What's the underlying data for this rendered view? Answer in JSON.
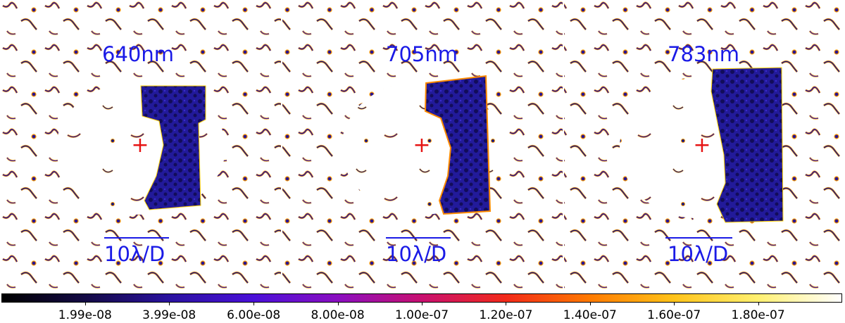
{
  "panels": [
    {
      "label": "640nm",
      "scale_label": "10λ/D"
    },
    {
      "label": "705nm",
      "scale_label": "10λ/D"
    },
    {
      "label": "783nm",
      "scale_label": "10λ/D"
    }
  ],
  "marker": "+",
  "colorbar": {
    "ticks": [
      "1.99e-08",
      "3.99e-08",
      "6.00e-08",
      "8.00e-08",
      "1.00e-07",
      "1.20e-07",
      "1.40e-07",
      "1.60e-07",
      "1.80e-07"
    ],
    "tick_values": [
      1.99e-08,
      3.99e-08,
      6e-08,
      8e-08,
      1e-07,
      1.2e-07,
      1.4e-07,
      1.6e-07,
      1.8e-07
    ],
    "range": [
      0,
      2e-07
    ],
    "colormap": [
      "#000000",
      "#140a46",
      "#2a12a0",
      "#4a10d8",
      "#8a0fc0",
      "#c81070",
      "#f22a1a",
      "#ff7a00",
      "#ffc31a",
      "#fff070",
      "#ffffff"
    ]
  },
  "colors": {
    "label": "#1a1ae6",
    "marker": "#e61414",
    "speckle_dark": "#1e1a7a",
    "speckle_mid": "#3a1ab0",
    "speckle_edge": "#ff8a00",
    "speckle_glow": "#ffd200"
  }
}
